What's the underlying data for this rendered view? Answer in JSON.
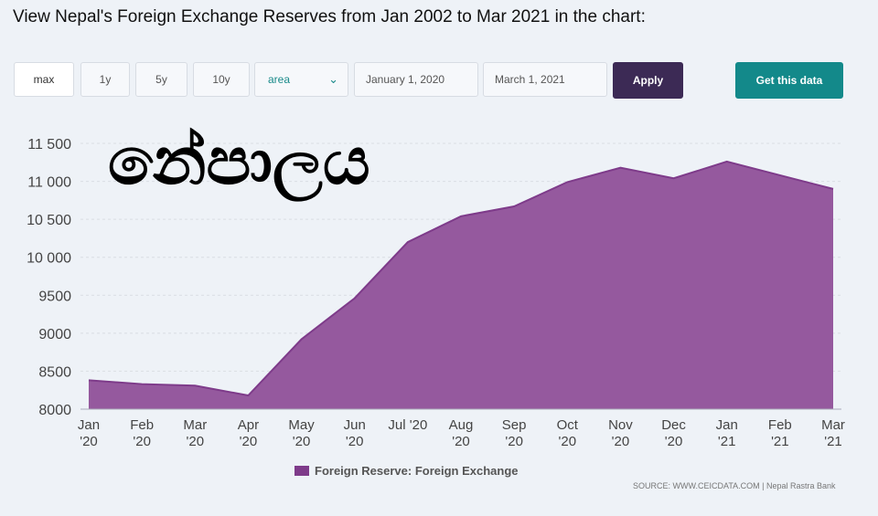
{
  "title": "View Nepal's Foreign Exchange Reserves from Jan 2002 to Mar 2021 in the chart:",
  "toolbar": {
    "range_max": "max",
    "range_1y": "1y",
    "range_5y": "5y",
    "range_10y": "10y",
    "chart_type": "area",
    "start_date": "January 1, 2020",
    "end_date": "March 1, 2021",
    "apply_label": "Apply",
    "get_data_label": "Get this data"
  },
  "watermark": "නේපාලය",
  "legend_label": "Foreign Reserve: Foreign Exchange",
  "source": "SOURCE: WWW.CEICDATA.COM | Nepal Rastra Bank",
  "colors": {
    "area_fill": "#95599e",
    "area_stroke": "#7e3b8a",
    "apply_bg": "#3c2a55",
    "get_data_bg": "#13898a",
    "grid": "#d9dde3"
  },
  "chart_data": {
    "type": "area",
    "x": [
      [
        "Jan",
        "'20"
      ],
      [
        "Feb",
        "'20"
      ],
      [
        "Mar",
        "'20"
      ],
      [
        "Apr",
        "'20"
      ],
      [
        "May",
        "'20"
      ],
      [
        "Jun",
        "'20"
      ],
      [
        "Jul '20",
        ""
      ],
      [
        "Aug",
        "'20"
      ],
      [
        "Sep",
        "'20"
      ],
      [
        "Oct",
        "'20"
      ],
      [
        "Nov",
        "'20"
      ],
      [
        "Dec",
        "'20"
      ],
      [
        "Jan",
        "'21"
      ],
      [
        "Feb",
        "'21"
      ],
      [
        "Mar",
        "'21"
      ]
    ],
    "series": [
      {
        "name": "Foreign Reserve: Foreign Exchange",
        "values": [
          8380,
          8330,
          8310,
          8180,
          8920,
          9460,
          10200,
          10540,
          10670,
          10990,
          11180,
          11040,
          11260,
          11080,
          10900
        ]
      }
    ],
    "yticks": [
      8000,
      8500,
      9000,
      9500,
      10000,
      10500,
      11000,
      11500
    ],
    "ytick_labels": [
      "8000",
      "8500",
      "9000",
      "9500",
      "10 000",
      "10 500",
      "11 000",
      "11 500"
    ],
    "ylim": [
      8000,
      11500
    ],
    "grid": true,
    "legend_position": "bottom"
  }
}
